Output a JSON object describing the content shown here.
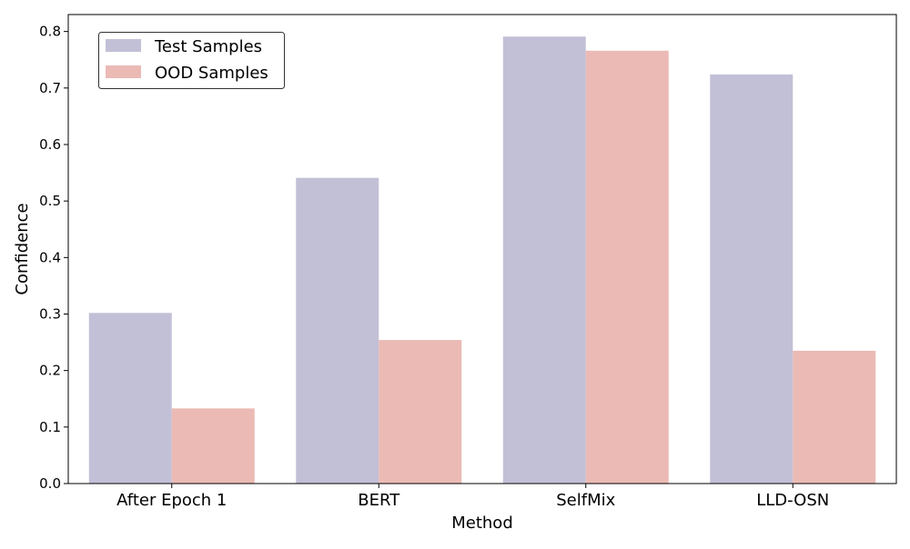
{
  "chart_data": {
    "type": "bar",
    "title": "",
    "xlabel": "Method",
    "ylabel": "Confidence",
    "categories": [
      "After Epoch 1",
      "BERT",
      "SelfMix",
      "LLD-OSN"
    ],
    "series": [
      {
        "name": "Test Samples",
        "color": "#c2c0d6",
        "values": [
          0.302,
          0.541,
          0.791,
          0.724
        ]
      },
      {
        "name": "OOD Samples",
        "color": "#ebbab5",
        "values": [
          0.133,
          0.254,
          0.766,
          0.235
        ]
      }
    ],
    "ylim": [
      0,
      0.83
    ],
    "yticks": [
      "0.0",
      "0.1",
      "0.2",
      "0.3",
      "0.4",
      "0.5",
      "0.6",
      "0.7",
      "0.8"
    ],
    "grid": false,
    "legend_position": "top-left"
  }
}
